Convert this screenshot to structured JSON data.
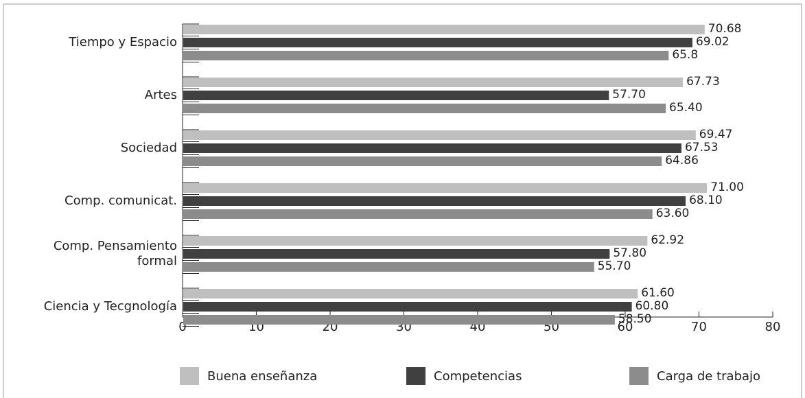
{
  "chart_data": {
    "type": "barh",
    "categories": [
      "Tiempo y Espacio",
      "Artes",
      "Sociedad",
      "Comp. comunicat.",
      "Comp. Pensamiento\nformal",
      "Ciencia y Tecgnología"
    ],
    "series": [
      {
        "name": "Buena enseñanza",
        "color": "#bfbfbf",
        "values": [
          70.68,
          67.73,
          69.47,
          71.0,
          62.92,
          61.6
        ],
        "value_labels": [
          "70.68",
          "67.73",
          "69.47",
          "71.00",
          "62.92",
          "61.60"
        ]
      },
      {
        "name": "Competencias",
        "color": "#404040",
        "values": [
          69.02,
          57.7,
          67.53,
          68.1,
          57.8,
          60.8
        ],
        "value_labels": [
          "69.02",
          "57.70",
          "67.53",
          "68.10",
          "57.80",
          "60.80"
        ]
      },
      {
        "name": "Carga de trabajo",
        "color": "#8c8c8c",
        "values": [
          65.8,
          65.4,
          64.86,
          63.6,
          55.7,
          58.5
        ],
        "value_labels": [
          "65.8",
          "65.40",
          "64.86",
          "63.60",
          "55.70",
          "58.50"
        ]
      }
    ],
    "xlim": [
      0,
      80
    ],
    "xticks": [
      0,
      10,
      20,
      30,
      40,
      50,
      60,
      70,
      80
    ]
  }
}
